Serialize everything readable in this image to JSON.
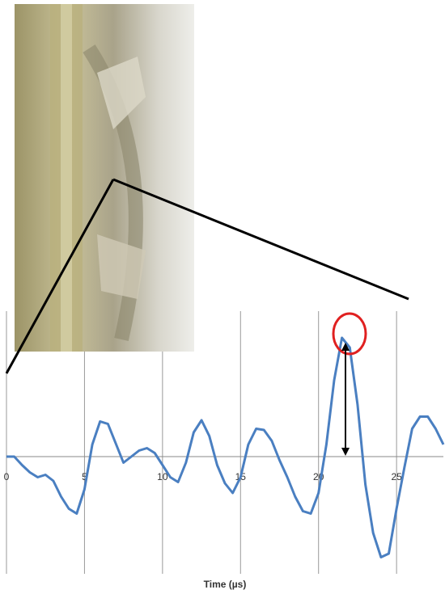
{
  "chart_data": {
    "type": "line",
    "x_label": "Time (µs)",
    "x": [
      0,
      0.5,
      1,
      1.5,
      2,
      2.5,
      3,
      3.5,
      4,
      4.5,
      5,
      5.5,
      6,
      6.5,
      7,
      7.5,
      8,
      8.5,
      9,
      9.5,
      10,
      10.5,
      11,
      11.5,
      12,
      12.5,
      13,
      13.5,
      14,
      14.5,
      15,
      15.5,
      16,
      16.5,
      17,
      17.5,
      18,
      18.5,
      19,
      19.5,
      20,
      20.5,
      21,
      21.5,
      22,
      22.5,
      23,
      23.5,
      24,
      24.5,
      25,
      25.5,
      26,
      26.5,
      27,
      27.5,
      28
    ],
    "values": [
      0.0,
      0.0,
      -0.07,
      -0.13,
      -0.17,
      -0.15,
      -0.2,
      -0.33,
      -0.43,
      -0.47,
      -0.27,
      0.1,
      0.29,
      0.27,
      0.11,
      -0.05,
      0.0,
      0.05,
      0.07,
      0.03,
      -0.07,
      -0.17,
      -0.21,
      -0.05,
      0.2,
      0.3,
      0.17,
      -0.07,
      -0.22,
      -0.3,
      -0.17,
      0.1,
      0.23,
      0.22,
      0.13,
      -0.03,
      -0.17,
      -0.33,
      -0.45,
      -0.47,
      -0.3,
      0.1,
      0.63,
      0.98,
      0.9,
      0.43,
      -0.23,
      -0.63,
      -0.83,
      -0.8,
      -0.43,
      -0.09,
      0.23,
      0.33,
      0.33,
      0.23,
      0.1
    ],
    "color": "#4a7fc1",
    "xlim": [
      0,
      28
    ],
    "xticks": [
      0,
      5,
      10,
      15,
      20,
      25
    ],
    "ylim": [
      -1,
      1.2
    ],
    "grid": true
  }
}
